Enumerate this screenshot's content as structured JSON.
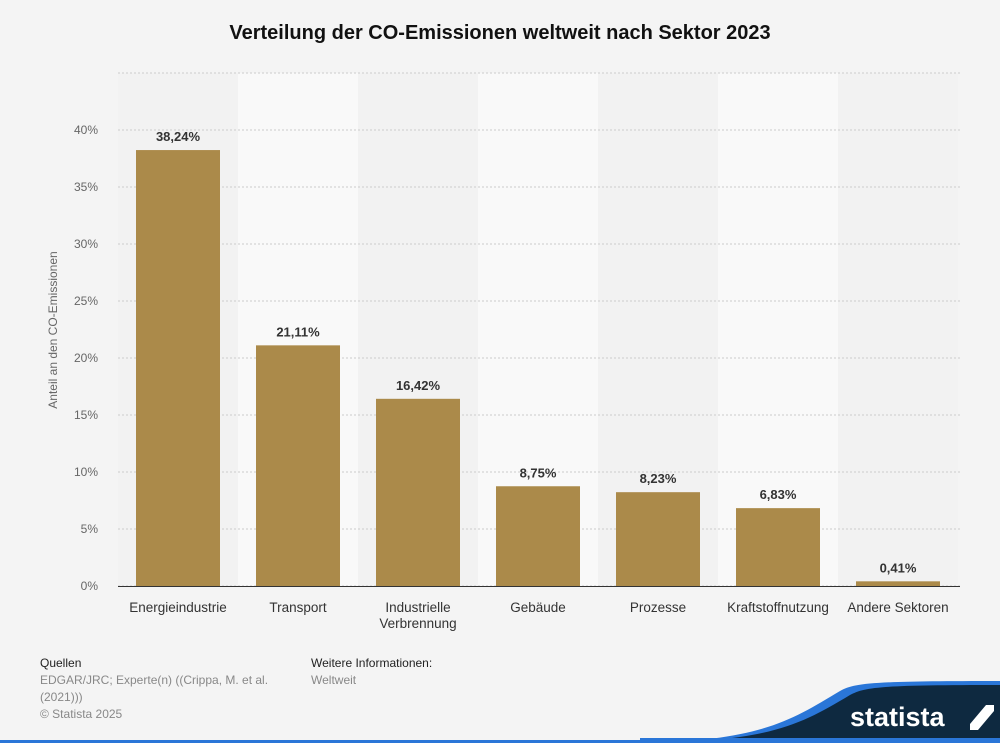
{
  "chart_data": {
    "type": "bar",
    "title": "Verteilung der CO-Emissionen weltweit nach Sektor 2023",
    "ylabel": "Anteil an den CO-Emissionen",
    "xlabel": "",
    "categories": [
      "Energieindustrie",
      "Transport",
      "Industrielle Verbrennung",
      "Gebäude",
      "Prozesse",
      "Kraftstoffnutzung",
      "Andere Sektoren"
    ],
    "category_lines": [
      [
        "Energieindustrie"
      ],
      [
        "Transport"
      ],
      [
        "Industrielle",
        "Verbrennung"
      ],
      [
        "Gebäude"
      ],
      [
        "Prozesse"
      ],
      [
        "Kraftstoffnutzung"
      ],
      [
        "Andere Sektoren"
      ]
    ],
    "values": [
      38.24,
      21.11,
      16.42,
      8.75,
      8.23,
      6.83,
      0.41
    ],
    "value_labels": [
      "38,24%",
      "21,11%",
      "16,42%",
      "8,75%",
      "8,23%",
      "6,83%",
      "0,41%"
    ],
    "yticks": [
      0,
      5,
      10,
      15,
      20,
      25,
      30,
      35,
      40
    ],
    "ytick_labels": [
      "0%",
      "5%",
      "10%",
      "15%",
      "20%",
      "25%",
      "30%",
      "35%",
      "40%"
    ],
    "ylim": [
      0,
      45
    ],
    "grid": true,
    "bar_color": "#ab8a4a"
  },
  "footer": {
    "sources_heading": "Quellen",
    "sources_line1": "EDGAR/JRC; Experte(n) ((Crippa, M. et al.",
    "sources_line2": "(2021)))",
    "copyright": "© Statista 2025",
    "info_heading": "Weitere Informationen:",
    "info_text": "Weltweit"
  },
  "logo": {
    "text": "statista"
  }
}
